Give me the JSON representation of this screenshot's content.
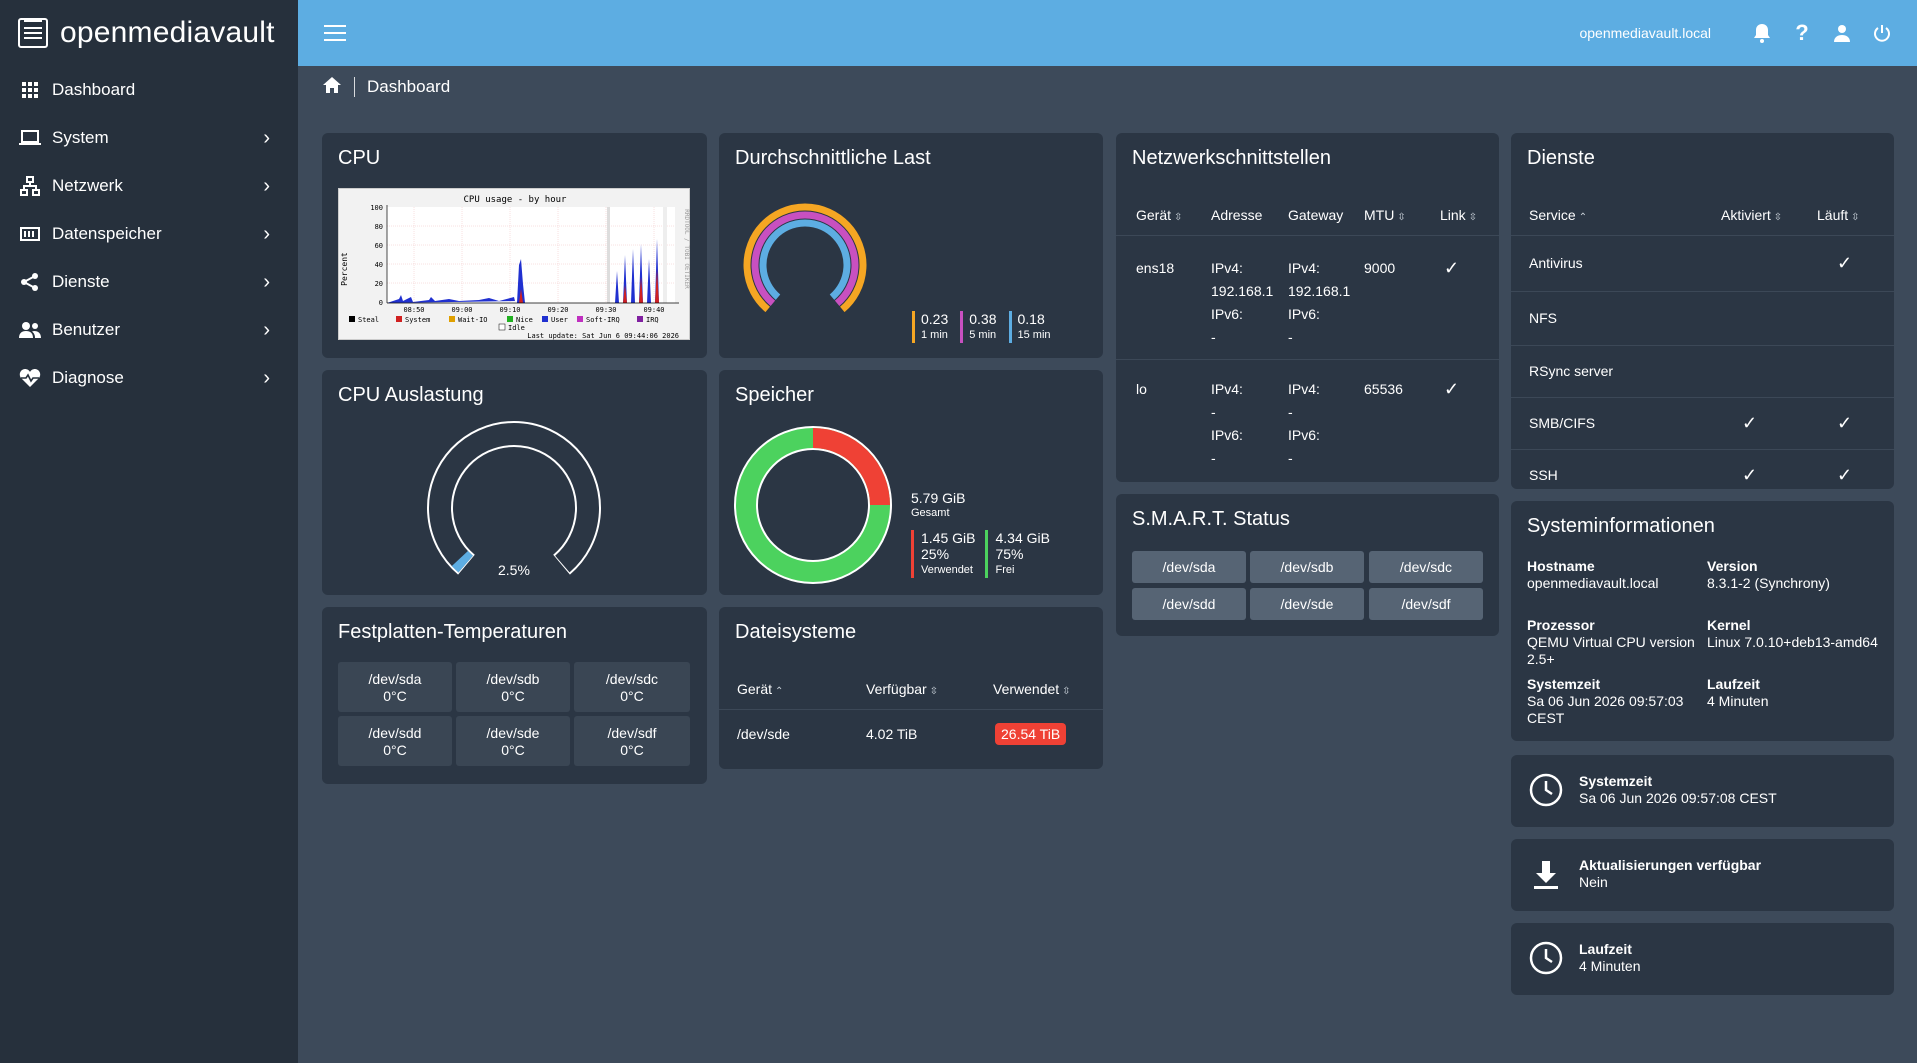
{
  "app": {
    "name": "openmediavault",
    "hostname": "openmediavault.local"
  },
  "sidebar": {
    "items": [
      {
        "label": "Dashboard",
        "icon": "grid-icon"
      },
      {
        "label": "System",
        "icon": "laptop-icon"
      },
      {
        "label": "Netzwerk",
        "icon": "network-icon"
      },
      {
        "label": "Datenspeicher",
        "icon": "storage-icon"
      },
      {
        "label": "Dienste",
        "icon": "share-icon"
      },
      {
        "label": "Benutzer",
        "icon": "users-icon"
      },
      {
        "label": "Diagnose",
        "icon": "heartbeat-icon"
      }
    ]
  },
  "breadcrumb": {
    "current": "Dashboard"
  },
  "cpu_card": {
    "title": "CPU",
    "graph": {
      "title": "CPU usage - by hour",
      "ylabel": "Percent",
      "y_ticks": [
        "100",
        "80",
        "60",
        "40",
        "20",
        "0"
      ],
      "x_ticks": [
        "08:50",
        "09:00",
        "09:10",
        "09:20",
        "09:30",
        "09:40"
      ],
      "legend": [
        "Steal",
        "System",
        "Wait-IO",
        "Nice",
        "User",
        "Soft-IRQ",
        "IRQ",
        "Idle"
      ],
      "footer": "Last update: Sat Jun  6 09:44:06 2026",
      "side_label": "RRDTOOL / TOBI OETIKER"
    }
  },
  "load_card": {
    "title": "Durchschnittliche Last",
    "values": [
      {
        "value": "0.23",
        "label": "1 min"
      },
      {
        "value": "0.38",
        "label": "5 min"
      },
      {
        "value": "0.18",
        "label": "15 min"
      }
    ],
    "colors": [
      "#f5a623",
      "#c850c0",
      "#5dade2"
    ]
  },
  "net_card": {
    "title": "Netzwerkschnittstellen",
    "columns": [
      "Gerät",
      "Adresse",
      "Gateway",
      "MTU",
      "Link"
    ],
    "rows": [
      {
        "device": "ens18",
        "addr": [
          "IPv4:",
          "192.168.1",
          "IPv6:",
          "-"
        ],
        "gw": [
          "IPv4:",
          "192.168.1",
          "IPv6:",
          "-"
        ],
        "mtu": "9000",
        "link": "✓"
      },
      {
        "device": "lo",
        "addr": [
          "IPv4:",
          "-",
          "IPv6:",
          "-"
        ],
        "gw": [
          "IPv4:",
          "-",
          "IPv6:",
          "-"
        ],
        "mtu": "65536",
        "link": "✓"
      }
    ]
  },
  "services_card": {
    "title": "Dienste",
    "columns": [
      "Service",
      "Aktiviert",
      "Läuft"
    ],
    "rows": [
      {
        "name": "Antivirus",
        "enabled": "",
        "running": "✓"
      },
      {
        "name": "NFS",
        "enabled": "",
        "running": ""
      },
      {
        "name": "RSync server",
        "enabled": "",
        "running": ""
      },
      {
        "name": "SMB/CIFS",
        "enabled": "✓",
        "running": "✓"
      },
      {
        "name": "SSH",
        "enabled": "✓",
        "running": "✓"
      }
    ]
  },
  "cpu_usage_card": {
    "title": "CPU Auslastung",
    "value": "2.5%",
    "percent": 2.5
  },
  "memory_card": {
    "title": "Speicher",
    "total": "5.79 GiB",
    "total_label": "Gesamt",
    "used": "1.45 GiB",
    "used_pct": "25%",
    "used_label": "Verwendet",
    "free": "4.34 GiB",
    "free_pct": "75%",
    "free_label": "Frei",
    "used_fraction": 0.25,
    "colors": {
      "used": "#ef4135",
      "free": "#4cd25e"
    }
  },
  "smart_card": {
    "title": "S.M.A.R.T. Status",
    "devices": [
      "/dev/sda",
      "/dev/sdb",
      "/dev/sdc",
      "/dev/sdd",
      "/dev/sde",
      "/dev/sdf"
    ]
  },
  "sysinfo_card": {
    "title": "Systeminformationen",
    "fields": [
      {
        "label": "Hostname",
        "value": "openmediavault.local"
      },
      {
        "label": "Version",
        "value": "8.3.1-2 (Synchrony)"
      },
      {
        "label": "Prozessor",
        "value": "QEMU Virtual CPU version 2.5+"
      },
      {
        "label": "Kernel",
        "value": "Linux 7.0.10+deb13-amd64"
      },
      {
        "label": "Systemzeit",
        "value": "Sa 06 Jun 2026 09:57:03 CEST"
      },
      {
        "label": "Laufzeit",
        "value": "4 Minuten"
      }
    ]
  },
  "temp_card": {
    "title": "Festplatten-Temperaturen",
    "disks": [
      {
        "dev": "/dev/sda",
        "temp": "0°C"
      },
      {
        "dev": "/dev/sdb",
        "temp": "0°C"
      },
      {
        "dev": "/dev/sdc",
        "temp": "0°C"
      },
      {
        "dev": "/dev/sdd",
        "temp": "0°C"
      },
      {
        "dev": "/dev/sde",
        "temp": "0°C"
      },
      {
        "dev": "/dev/sdf",
        "temp": "0°C"
      }
    ]
  },
  "fs_card": {
    "title": "Dateisysteme",
    "columns": [
      "Gerät",
      "Verfügbar",
      "Verwendet"
    ],
    "rows": [
      {
        "device": "/dev/sde",
        "available": "4.02 TiB",
        "used": "26.54 TiB"
      }
    ]
  },
  "widgets": {
    "time": {
      "title": "Systemzeit",
      "value": "Sa 06 Jun 2026 09:57:08 CEST"
    },
    "updates": {
      "title": "Aktualisierungen verfügbar",
      "value": "Nein"
    },
    "uptime": {
      "title": "Laufzeit",
      "value": "4 Minuten"
    }
  }
}
